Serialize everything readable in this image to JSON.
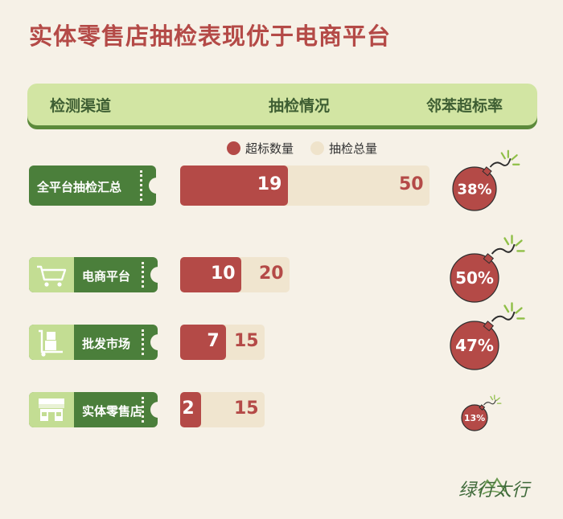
{
  "title": "实体零售店抽检表现优于电商平台",
  "header": {
    "col_channel": "检测渠道",
    "col_result": "抽检情况",
    "col_rate": "邻苯超标率"
  },
  "legend": {
    "exceed_label": "超标数量",
    "total_label": "抽检总量"
  },
  "colors": {
    "exceed": "#b44a47",
    "total": "#f0e5cf",
    "label_bg": "#4b7f3b",
    "header_bg": "#d2e5a3"
  },
  "chart_data": {
    "type": "bar",
    "categories": [
      "全平台抽检汇总",
      "电商平台",
      "批发市场",
      "实体零售店"
    ],
    "series": [
      {
        "name": "超标数量",
        "values": [
          19,
          10,
          7,
          2
        ]
      },
      {
        "name": "抽检总量",
        "values": [
          50,
          20,
          15,
          15
        ]
      }
    ],
    "rates": [
      "38%",
      "50%",
      "47%",
      "13%"
    ],
    "icons": [
      "",
      "shopping-cart-icon",
      "hand-truck-icon",
      "store-icon"
    ]
  },
  "logo": {
    "text": "绿行太行"
  }
}
